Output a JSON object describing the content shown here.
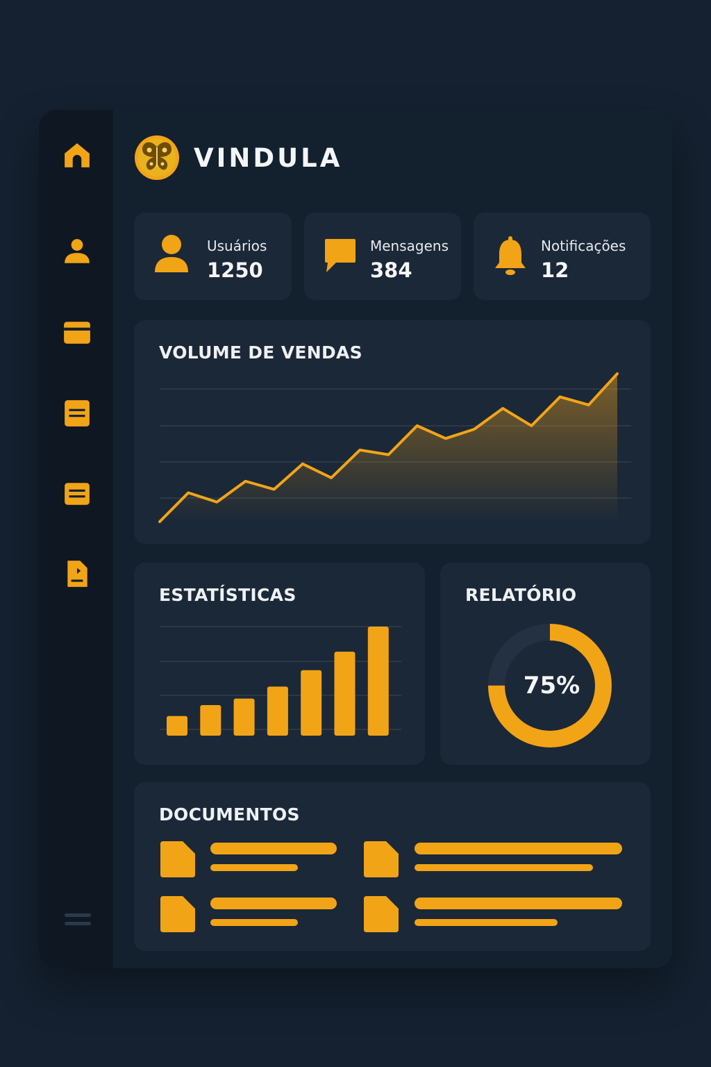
{
  "app": {
    "name": "VINDULA",
    "logo": "butterfly-logo"
  },
  "sidebar": {
    "items": [
      {
        "id": "home",
        "icon": "home-icon"
      },
      {
        "id": "user",
        "icon": "user-icon"
      },
      {
        "id": "card",
        "icon": "credit-card-icon"
      },
      {
        "id": "list-1",
        "icon": "document-list-icon"
      },
      {
        "id": "list-2",
        "icon": "document-list-icon"
      },
      {
        "id": "file",
        "icon": "file-icon"
      }
    ],
    "menu_icon": "menu-icon"
  },
  "stats": [
    {
      "label": "Usuários",
      "value": "1250",
      "icon": "user-icon"
    },
    {
      "label": "Mensagens",
      "value": "384",
      "icon": "chat-bubble-icon"
    },
    {
      "label": "Notificações",
      "value": "12",
      "icon": "bell-icon"
    }
  ],
  "sales": {
    "title": "VOLUME DE VENDAS",
    "chart_data": {
      "type": "area",
      "title": "VOLUME DE VENDAS",
      "x": [
        1,
        2,
        3,
        4,
        5,
        6,
        7,
        8,
        9,
        10,
        11,
        12,
        13,
        14,
        15,
        16,
        17
      ],
      "values": [
        0,
        25,
        17,
        35,
        28,
        50,
        38,
        62,
        58,
        83,
        72,
        80,
        98,
        83,
        108,
        101,
        128
      ],
      "grid": true
    }
  },
  "stats_chart": {
    "title": "ESTATÍSTICAS",
    "chart_data": {
      "type": "bar",
      "title": "ESTATÍSTICAS",
      "values": [
        18,
        28,
        34,
        45,
        60,
        77,
        100
      ],
      "ylim": [
        0,
        100
      ],
      "grid": true
    }
  },
  "report": {
    "title": "RELATÓRIO",
    "percent": 75,
    "label": "75%"
  },
  "documents": {
    "title": "DOCUMENTOS",
    "items": [
      {
        "icon": "file-icon",
        "title_fill": 1.0,
        "subtitle_fill": 0.69
      },
      {
        "icon": "file-icon",
        "title_fill": 1.0,
        "subtitle_fill": 0.86
      },
      {
        "icon": "file-icon",
        "title_fill": 1.0,
        "subtitle_fill": 0.69
      },
      {
        "icon": "file-icon",
        "title_fill": 1.0,
        "subtitle_fill": 0.69
      }
    ]
  },
  "colors": {
    "accent": "#f2a417",
    "card": "#1b2838",
    "sidebar": "#0f1822",
    "background": "#152130",
    "track": "#243142"
  }
}
